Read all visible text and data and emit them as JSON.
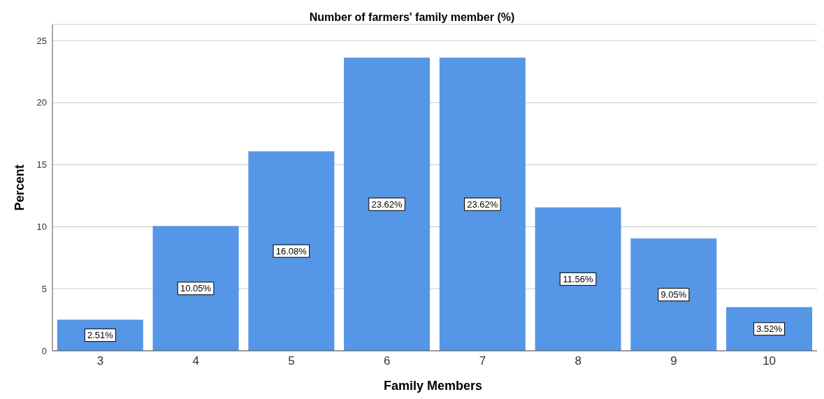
{
  "chart_data": {
    "type": "bar",
    "title": "Number of farmers' family member (%)",
    "xlabel": "Family Members",
    "ylabel": "Percent",
    "categories": [
      "3",
      "4",
      "5",
      "6",
      "7",
      "8",
      "9",
      "10"
    ],
    "values": [
      2.51,
      10.05,
      16.08,
      23.62,
      23.62,
      11.56,
      9.05,
      3.52
    ],
    "value_labels": [
      "2.51%",
      "10.05%",
      "16.08%",
      "23.62%",
      "23.62%",
      "11.56%",
      "9.05%",
      "3.52%"
    ],
    "color": "#5596e6",
    "ylim": [
      0,
      26.3
    ],
    "yticks": [
      0,
      5,
      10,
      15,
      20,
      25
    ],
    "grid": "y"
  }
}
